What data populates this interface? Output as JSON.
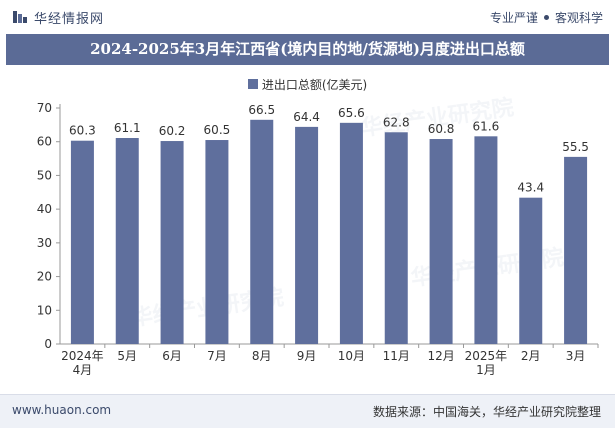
{
  "header": {
    "brand": "华经情报网",
    "tag1": "专业严谨",
    "tag2": "客观科学"
  },
  "title": "2024-2025年3月年江西省(境内目的地/货源地)月度进出口总额",
  "legend": {
    "label": "进出口总额(亿美元)"
  },
  "footer": {
    "site": "www.huaon.com",
    "source": "数据来源：中国海关，华经产业研究院整理"
  },
  "colors": {
    "bar": "#5f6f9d",
    "title_bg": "#5b6b96"
  },
  "chart_data": {
    "type": "bar",
    "title": "2024-2025年3月年江西省(境内目的地/货源地)月度进出口总额",
    "categories": [
      "2024年\n4月",
      "5月",
      "6月",
      "7月",
      "8月",
      "9月",
      "10月",
      "11月",
      "12月",
      "2025年\n1月",
      "2月",
      "3月"
    ],
    "series": [
      {
        "name": "进出口总额(亿美元)",
        "values": [
          60.3,
          61.1,
          60.2,
          60.5,
          66.5,
          64.4,
          65.6,
          62.8,
          60.8,
          61.6,
          43.4,
          55.5
        ]
      }
    ],
    "ylim": [
      0,
      70
    ],
    "yticks": [
      0,
      10,
      20,
      30,
      40,
      50,
      60,
      70
    ],
    "xlabel": "",
    "ylabel": "",
    "grid": false
  }
}
